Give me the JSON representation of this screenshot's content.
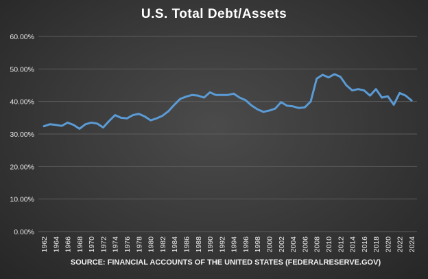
{
  "chart_data": {
    "type": "line",
    "title": "U.S. Total Debt/Assets",
    "source": "SOURCE: FINANCIAL ACCOUNTS OF THE UNITED STATES (FEDERALRESERVE.GOV)",
    "xlabel": "",
    "ylabel": "",
    "ylim": [
      0,
      60
    ],
    "y_ticks": [
      "0.00%",
      "10.00%",
      "20.00%",
      "30.00%",
      "40.00%",
      "50.00%",
      "60.00%"
    ],
    "x_tick_labels": [
      "1962",
      "1964",
      "1966",
      "1968",
      "1970",
      "1972",
      "1974",
      "1976",
      "1978",
      "1980",
      "1982",
      "1984",
      "1986",
      "1988",
      "1990",
      "1992",
      "1994",
      "1996",
      "1998",
      "2000",
      "2002",
      "2004",
      "2006",
      "2008",
      "2010",
      "2012",
      "2014",
      "2016",
      "2018",
      "2020",
      "2022",
      "2024"
    ],
    "grid": true,
    "legend": "none",
    "line_color": "#5b9bd5",
    "x": [
      1962,
      1963,
      1964,
      1965,
      1966,
      1967,
      1968,
      1969,
      1970,
      1971,
      1972,
      1973,
      1974,
      1975,
      1976,
      1977,
      1978,
      1979,
      1980,
      1981,
      1982,
      1983,
      1984,
      1985,
      1986,
      1987,
      1988,
      1989,
      1990,
      1991,
      1992,
      1993,
      1994,
      1995,
      1996,
      1997,
      1998,
      1999,
      2000,
      2001,
      2002,
      2003,
      2004,
      2005,
      2006,
      2007,
      2008,
      2009,
      2010,
      2011,
      2012,
      2013,
      2014,
      2015,
      2016,
      2017,
      2018,
      2019,
      2020,
      2021,
      2022,
      2023,
      2024
    ],
    "series": [
      {
        "values": [
          32.4,
          33.0,
          32.8,
          32.5,
          33.5,
          32.8,
          31.6,
          33.0,
          33.5,
          33.2,
          32.0,
          34.0,
          35.8,
          35.0,
          34.8,
          35.8,
          36.2,
          35.4,
          34.2,
          34.8,
          35.6,
          37.0,
          39.0,
          40.8,
          41.5,
          42.0,
          41.8,
          41.2,
          42.8,
          42.0,
          42.0,
          42.0,
          42.4,
          41.2,
          40.4,
          38.8,
          37.6,
          36.8,
          37.2,
          37.8,
          39.8,
          38.7,
          38.5,
          38.0,
          38.2,
          40.0,
          47.0,
          48.2,
          47.4,
          48.4,
          47.6,
          45.0,
          43.4,
          43.8,
          43.4,
          41.8,
          43.8,
          41.2,
          41.6,
          39.0,
          42.6,
          41.8,
          40.3
        ]
      }
    ]
  }
}
